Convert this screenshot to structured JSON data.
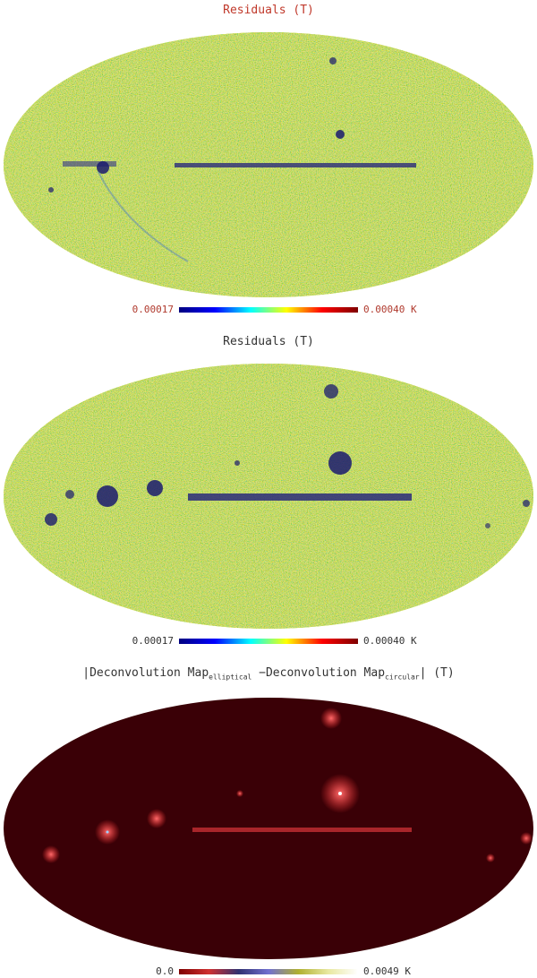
{
  "panels": [
    {
      "title": "Residuals (T)",
      "title_color": "#c0392b",
      "colorbar": {
        "min_label": "0.00017",
        "max_label": "0.00040 K",
        "scheme": "jet"
      }
    },
    {
      "title": "Residuals (T)",
      "title_color": "#333333",
      "colorbar": {
        "min_label": "0.00017",
        "max_label": "0.00040 K",
        "scheme": "jet"
      }
    },
    {
      "title_main": "|Deconvolution Map",
      "title_sub1": "elliptical",
      "title_mid": " −Deconvolution Map",
      "title_sub2": "circular",
      "title_end": "| (T)",
      "title_color": "#333333",
      "colorbar": {
        "min_label": "0.0",
        "max_label": "0.0049 K",
        "scheme": "heat"
      }
    }
  ]
}
